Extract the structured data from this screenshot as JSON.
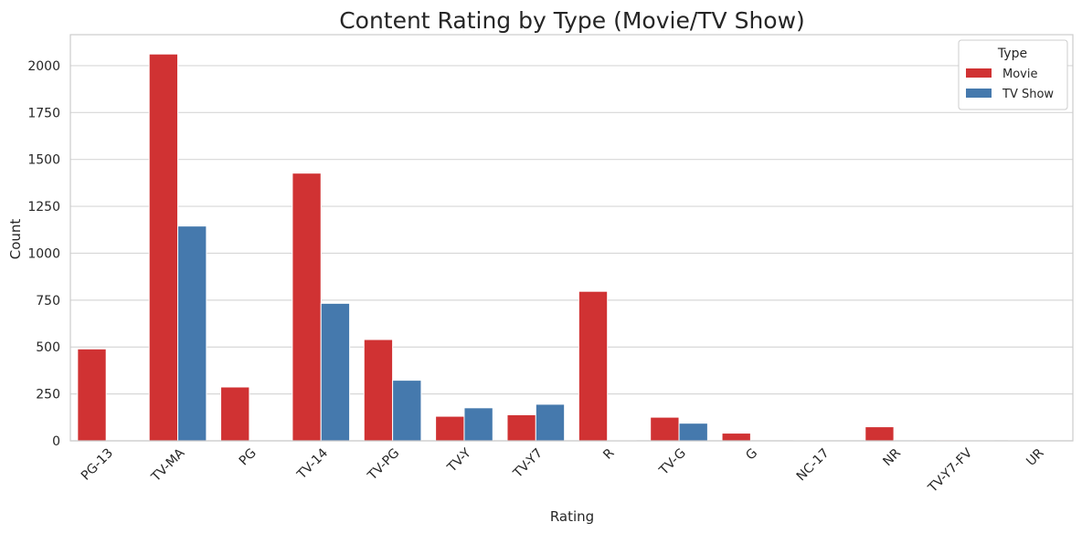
{
  "chart_data": {
    "type": "bar",
    "title": "Content Rating by Type (Movie/TV Show)",
    "xlabel": "Rating",
    "ylabel": "Count",
    "categories": [
      "PG-13",
      "TV-MA",
      "PG",
      "TV-14",
      "TV-PG",
      "TV-Y",
      "TV-Y7",
      "R",
      "TV-G",
      "G",
      "NC-17",
      "NR",
      "TV-Y7-FV",
      "UR"
    ],
    "series": [
      {
        "name": "Movie",
        "color": "#d03233",
        "values": [
          490,
          2062,
          287,
          1427,
          540,
          131,
          139,
          797,
          126,
          41,
          3,
          75,
          5,
          3
        ]
      },
      {
        "name": "TV Show",
        "color": "#4579ad",
        "values": [
          0,
          1145,
          0,
          733,
          323,
          176,
          195,
          2,
          94,
          0,
          0,
          5,
          1,
          0
        ]
      }
    ],
    "ylim": [
      0,
      2165
    ],
    "yticks": [
      0,
      250,
      500,
      750,
      1000,
      1250,
      1500,
      1750,
      2000
    ],
    "grid": "horizontal",
    "legend": {
      "title": "Type",
      "placement": "top-right"
    }
  }
}
